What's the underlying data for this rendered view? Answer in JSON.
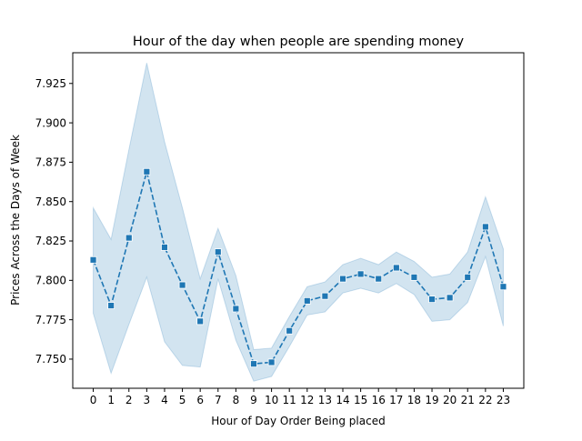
{
  "chart_data": {
    "type": "line",
    "title": "Hour of the day when people are spending money",
    "xlabel": "Hour of Day Order Being placed",
    "ylabel": "Prices Across the Days of Week",
    "x": [
      0,
      1,
      2,
      3,
      4,
      5,
      6,
      7,
      8,
      9,
      10,
      11,
      12,
      13,
      14,
      15,
      16,
      17,
      18,
      19,
      20,
      21,
      22,
      23
    ],
    "xticks": [
      "0",
      "1",
      "2",
      "3",
      "4",
      "5",
      "6",
      "7",
      "8",
      "9",
      "10",
      "11",
      "12",
      "13",
      "14",
      "15",
      "16",
      "17",
      "18",
      "19",
      "20",
      "21",
      "22",
      "23"
    ],
    "yticks": [
      "7.750",
      "7.775",
      "7.800",
      "7.825",
      "7.850",
      "7.875",
      "7.900",
      "7.925"
    ],
    "ytick_values": [
      7.75,
      7.775,
      7.8,
      7.825,
      7.85,
      7.875,
      7.9,
      7.925
    ],
    "xlim": [
      -1.15,
      24.15
    ],
    "ylim": [
      7.7315,
      7.9445
    ],
    "series": [
      {
        "values": [
          7.813,
          7.784,
          7.827,
          7.869,
          7.821,
          7.797,
          7.774,
          7.818,
          7.782,
          7.747,
          7.748,
          7.768,
          7.787,
          7.79,
          7.801,
          7.804,
          7.801,
          7.808,
          7.802,
          7.788,
          7.789,
          7.802,
          7.834,
          7.796
        ],
        "ci_upper": [
          7.846,
          7.826,
          7.883,
          7.938,
          7.888,
          7.846,
          7.801,
          7.833,
          7.803,
          7.756,
          7.757,
          7.777,
          7.796,
          7.799,
          7.81,
          7.814,
          7.81,
          7.818,
          7.812,
          7.802,
          7.804,
          7.818,
          7.853,
          7.82
        ],
        "ci_lower": [
          7.779,
          7.741,
          7.772,
          7.802,
          7.761,
          7.746,
          7.745,
          7.801,
          7.762,
          7.736,
          7.739,
          7.758,
          7.778,
          7.78,
          7.792,
          7.795,
          7.792,
          7.798,
          7.791,
          7.774,
          7.775,
          7.786,
          7.815,
          7.771
        ],
        "style": "dashed",
        "marker": "square"
      }
    ],
    "colors": {
      "line": "#1f77b4",
      "band": "#1f77b4"
    },
    "grid": false,
    "legend": "none"
  }
}
